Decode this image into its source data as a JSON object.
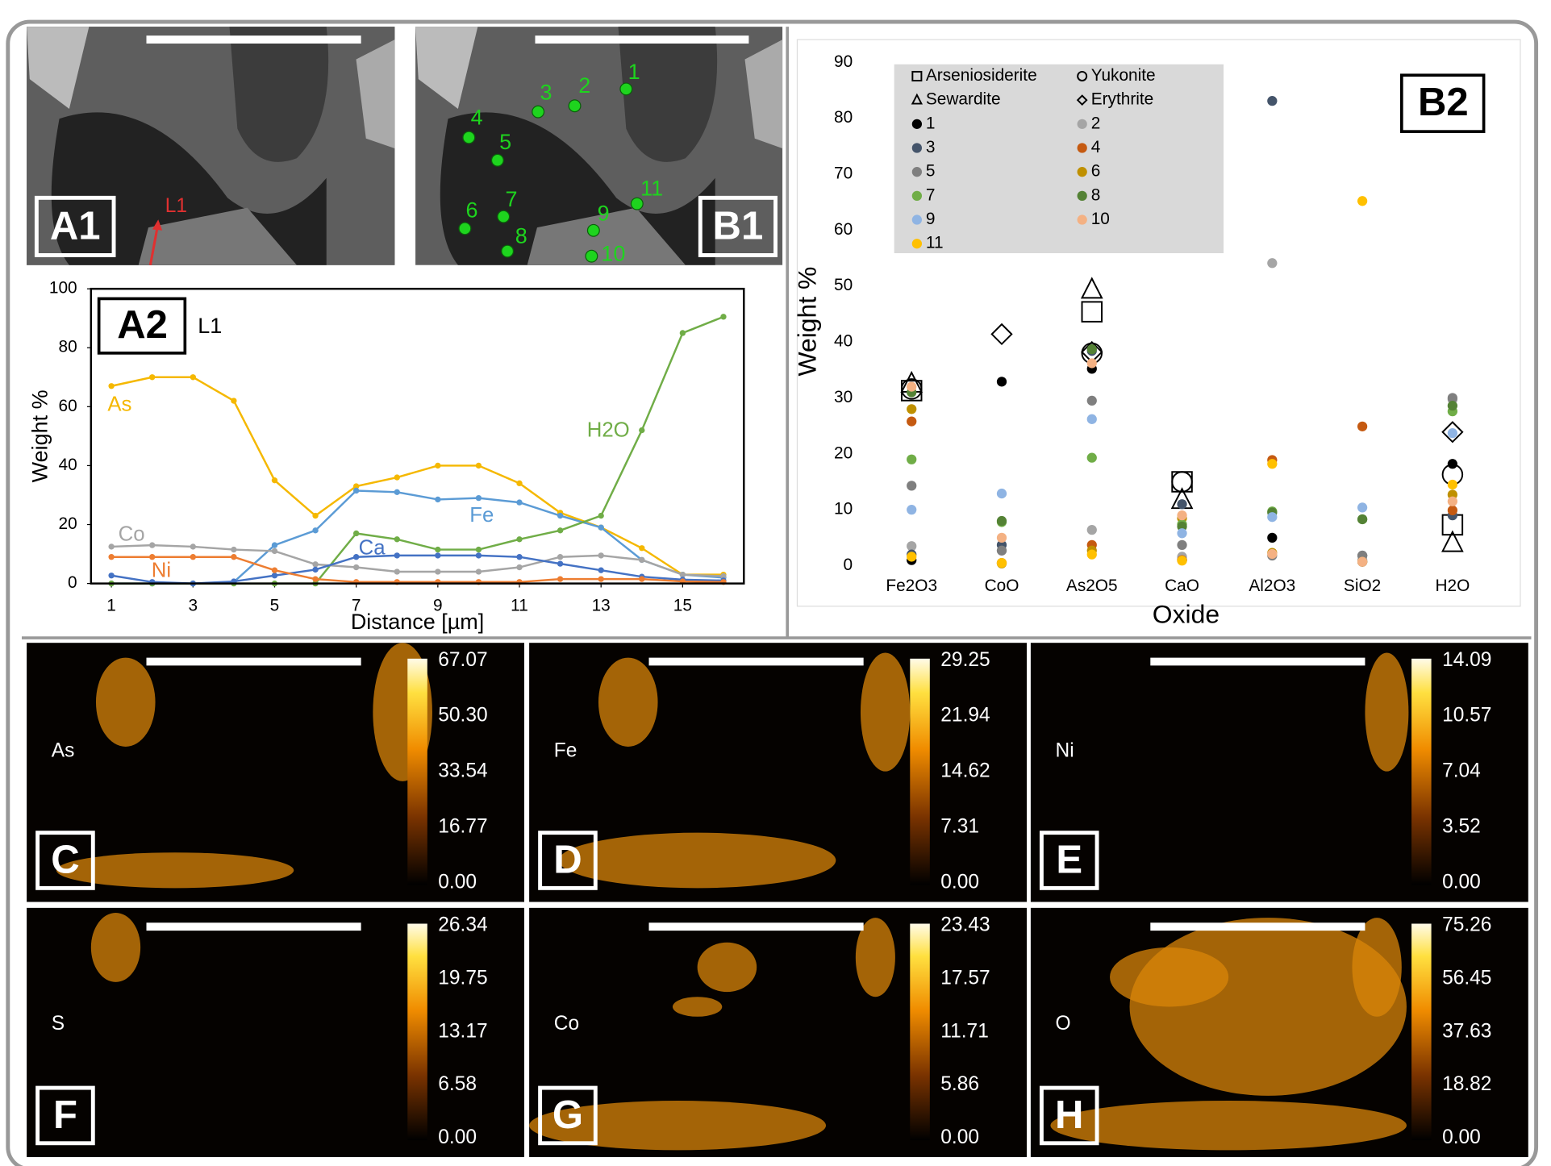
{
  "panels": {
    "A1": {
      "label": "A1",
      "line_label": "L1"
    },
    "B1": {
      "label": "B1",
      "points": [
        "1",
        "2",
        "3",
        "4",
        "5",
        "6",
        "7",
        "8",
        "9",
        "10",
        "11"
      ]
    },
    "A2": {
      "label": "A2",
      "line_label": "L1"
    },
    "B2": {
      "label": "B2"
    }
  },
  "chart_data": [
    {
      "type": "line",
      "x": [
        1,
        2,
        3,
        4,
        5,
        6,
        7,
        8,
        9,
        10,
        11,
        12,
        13,
        14,
        15,
        16
      ],
      "xlim": [
        0.5,
        16.5
      ],
      "xticks": [
        1,
        3,
        5,
        7,
        9,
        11,
        13,
        15
      ],
      "ylim": [
        0,
        100
      ],
      "yticks": [
        0,
        20,
        40,
        60,
        80,
        100
      ],
      "xlabel": "Distance [µm]",
      "ylabel": "Weight %",
      "series": [
        {
          "name": "As",
          "color": "#f5b800",
          "values": [
            67,
            70,
            70,
            62,
            35,
            23,
            33,
            36,
            40,
            40,
            34,
            24,
            19,
            12,
            3,
            3
          ]
        },
        {
          "name": "Fe",
          "color": "#5b9bd5",
          "values": [
            0,
            0,
            0,
            0.5,
            13,
            18,
            31.5,
            31,
            28.5,
            29,
            27.5,
            23,
            19,
            8,
            3,
            2
          ]
        },
        {
          "name": "H2O",
          "color": "#70ad47",
          "values": [
            0,
            0,
            0,
            0,
            0,
            0,
            17,
            15,
            11.5,
            11.5,
            15,
            18,
            23,
            52,
            85,
            90.5
          ]
        },
        {
          "name": "Co",
          "color": "#a5a5a5",
          "values": [
            12.5,
            13,
            12.5,
            11.5,
            11,
            6.5,
            5.5,
            4,
            4,
            4,
            5.5,
            9,
            9.5,
            8,
            3,
            2.5
          ]
        },
        {
          "name": "Ca",
          "color": "#4472c4",
          "values": [
            2.7,
            0.5,
            0,
            0.7,
            2.7,
            4.7,
            9,
            9.5,
            9.5,
            9.5,
            9,
            6.7,
            4.5,
            2.3,
            1.3,
            1
          ]
        },
        {
          "name": "Ni",
          "color": "#ed7d31",
          "values": [
            9,
            9,
            9,
            9,
            4.5,
            1.5,
            0.5,
            0.5,
            0.5,
            0.5,
            0.5,
            1.5,
            1.5,
            1.5,
            0.7,
            0.5
          ]
        }
      ]
    },
    {
      "type": "scatter",
      "categories": [
        "Fe2O3",
        "CoO",
        "As2O5",
        "CaO",
        "Al2O3",
        "SiO2",
        "H2O"
      ],
      "ylim": [
        0,
        90
      ],
      "yticks": [
        0,
        10,
        20,
        30,
        40,
        50,
        60,
        70,
        80,
        90
      ],
      "xlabel": "Oxide",
      "ylabel": "Weight %",
      "legend": "upper left",
      "series": [
        {
          "name": "Arseniosiderite",
          "marker": "square",
          "color": "#000000",
          "values": [
            31.3,
            null,
            45.4,
            15,
            null,
            null,
            7.3
          ]
        },
        {
          "name": "Yukonite",
          "marker": "circle",
          "color": "#000000",
          "values": [
            31.6,
            null,
            38,
            15,
            null,
            null,
            16.3
          ]
        },
        {
          "name": "Sewardite",
          "marker": "triangle",
          "color": "#000000",
          "values": [
            32.5,
            null,
            49.3,
            11.7,
            null,
            null,
            4
          ]
        },
        {
          "name": "Erythrite",
          "marker": "diamond",
          "color": "#000000",
          "values": [
            null,
            41.4,
            38.2,
            null,
            null,
            null,
            23.9
          ]
        },
        {
          "name": "1",
          "marker": "dot",
          "color": "#000000",
          "values": [
            1,
            32.9,
            35.2,
            1,
            5,
            0.7,
            18.2
          ]
        },
        {
          "name": "2",
          "marker": "dot",
          "color": "#a5a5a5",
          "values": [
            3.5,
            2.7,
            6.4,
            1.6,
            54.1,
            1,
            29.7
          ]
        },
        {
          "name": "3",
          "marker": "dot",
          "color": "#44546a",
          "values": [
            2,
            3.7,
            38.4,
            11,
            83.1,
            1.8,
            9
          ]
        },
        {
          "name": "4",
          "marker": "dot",
          "color": "#c55a11",
          "values": [
            25.8,
            0.5,
            3.7,
            1,
            18.9,
            24.9,
            9.9
          ]
        },
        {
          "name": "5",
          "marker": "dot",
          "color": "#7f7f7f",
          "values": [
            14.3,
            2.7,
            29.5,
            3.7,
            1.8,
            1.8,
            30
          ]
        },
        {
          "name": "6",
          "marker": "dot",
          "color": "#bf9000",
          "values": [
            28,
            0.4,
            2.7,
            8.5,
            2.3,
            0.7,
            12.7
          ]
        },
        {
          "name": "7",
          "marker": "dot",
          "color": "#70ad47",
          "values": [
            19,
            7.8,
            19.3,
            7.4,
            9.7,
            8.3,
            27.6
          ]
        },
        {
          "name": "8",
          "marker": "dot",
          "color": "#548235",
          "values": [
            31,
            8,
            38.7,
            7,
            9.5,
            8.3,
            28.6
          ]
        },
        {
          "name": "9",
          "marker": "dot",
          "color": "#8fb4e3",
          "values": [
            10,
            12.9,
            26.2,
            5.8,
            8.7,
            10.4,
            23.7
          ]
        },
        {
          "name": "10",
          "marker": "dot",
          "color": "#f4b183",
          "values": [
            32,
            5,
            36.2,
            9,
            2.1,
            0.7,
            11.5
          ]
        },
        {
          "name": "11",
          "marker": "dot",
          "color": "#ffc000",
          "values": [
            1.6,
            0.5,
            2,
            0.9,
            18.2,
            65.2,
            14.5
          ]
        }
      ]
    }
  ],
  "maps": [
    {
      "letter": "C",
      "element": "As",
      "scale": [
        "67.07",
        "50.30",
        "33.54",
        "16.77",
        "0.00"
      ]
    },
    {
      "letter": "D",
      "element": "Fe",
      "scale": [
        "29.25",
        "21.94",
        "14.62",
        "7.31",
        "0.00"
      ]
    },
    {
      "letter": "E",
      "element": "Ni",
      "scale": [
        "14.09",
        "10.57",
        "7.04",
        "3.52",
        "0.00"
      ]
    },
    {
      "letter": "F",
      "element": "S",
      "scale": [
        "26.34",
        "19.75",
        "13.17",
        "6.58",
        "0.00"
      ]
    },
    {
      "letter": "G",
      "element": "Co",
      "scale": [
        "23.43",
        "17.57",
        "11.71",
        "5.86",
        "0.00"
      ]
    },
    {
      "letter": "H",
      "element": "O",
      "scale": [
        "75.26",
        "56.45",
        "37.63",
        "18.82",
        "0.00"
      ]
    }
  ]
}
